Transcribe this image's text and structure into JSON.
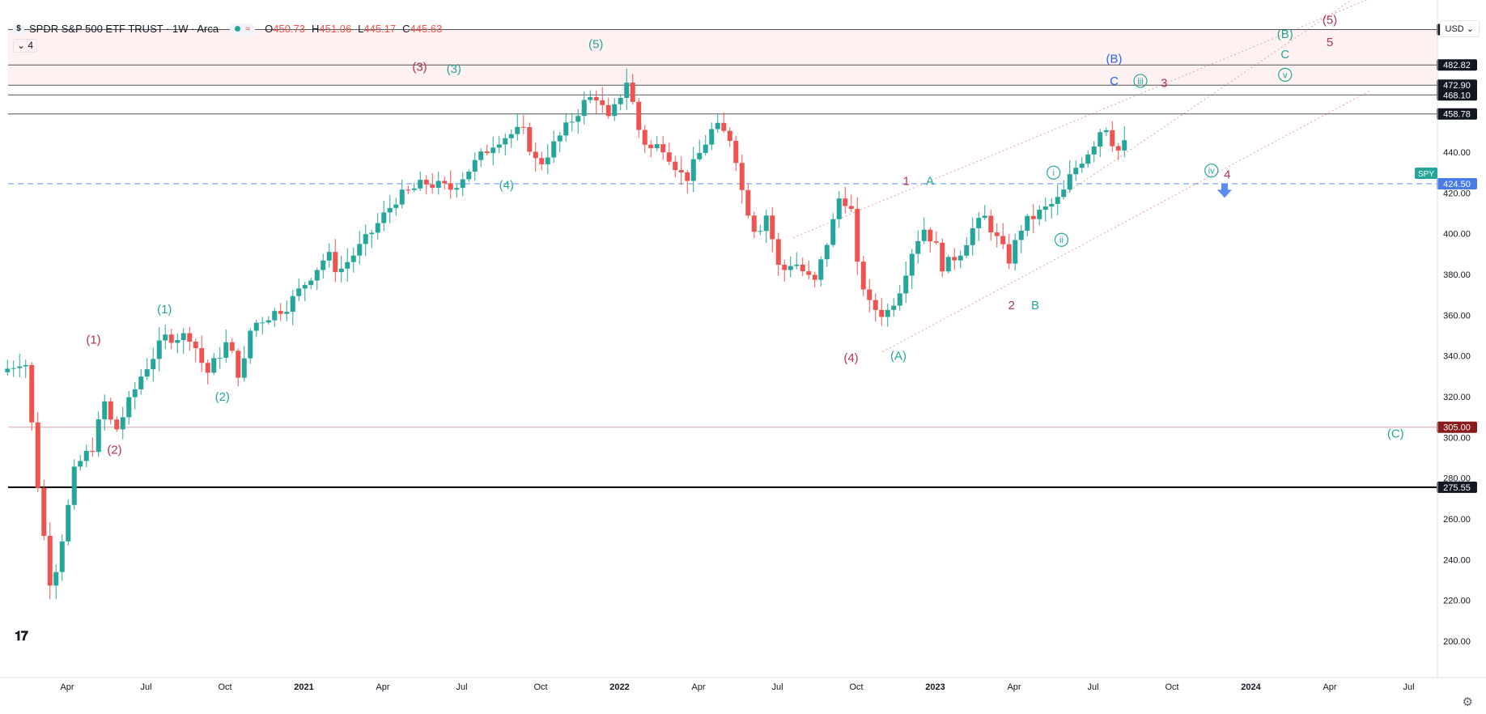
{
  "legend": {
    "symbol_badge": "$",
    "title": "SPDR S&P 500 ETF TRUST · 1W · Arca",
    "indicator_glyph": "≈",
    "ohlc": [
      {
        "k": "O",
        "v": "450.73"
      },
      {
        "k": "H",
        "v": "451.06"
      },
      {
        "k": "L",
        "v": "445.17"
      },
      {
        "k": "C",
        "v": "445.63"
      }
    ],
    "collapse_label": "⌄ 4"
  },
  "currency": "USD ⌄",
  "ticker_tag": "SPY",
  "colors": {
    "up": "#26a69a",
    "down": "#ef5350",
    "red_label": "#b2334a",
    "teal_label": "#26a69a",
    "blue_label": "#2962ff"
  },
  "chart_data": {
    "type": "candlestick",
    "interval": "1W",
    "ylim": [
      190,
      512
    ],
    "y_ticks": [
      "200.00",
      "220.00",
      "240.00",
      "260.00",
      "280.00",
      "300.00",
      "320.00",
      "340.00",
      "360.00",
      "380.00",
      "400.00",
      "420.00",
      "440.00"
    ],
    "x_ticks": [
      {
        "label": "Apr",
        "m": 3
      },
      {
        "label": "Jul",
        "m": 6
      },
      {
        "label": "Oct",
        "m": 9
      },
      {
        "label": "2021",
        "m": 12
      },
      {
        "label": "Apr",
        "m": 15
      },
      {
        "label": "Jul",
        "m": 18
      },
      {
        "label": "Oct",
        "m": 21
      },
      {
        "label": "2022",
        "m": 24
      },
      {
        "label": "Apr",
        "m": 27
      },
      {
        "label": "Jul",
        "m": 30
      },
      {
        "label": "Oct",
        "m": 33
      },
      {
        "label": "2023",
        "m": 36
      },
      {
        "label": "Apr",
        "m": 39
      },
      {
        "label": "Jul",
        "m": 42
      },
      {
        "label": "Oct",
        "m": 45
      },
      {
        "label": "2024",
        "m": 48
      },
      {
        "label": "Apr",
        "m": 51
      },
      {
        "label": "Jul",
        "m": 54
      }
    ],
    "price_pivots": [
      [
        0.5,
        332
      ],
      [
        1.4,
        339
      ],
      [
        2.0,
        262
      ],
      [
        2.4,
        225
      ],
      [
        3.0,
        263
      ],
      [
        3.3,
        285
      ],
      [
        4.0,
        296
      ],
      [
        4.4,
        318
      ],
      [
        4.8,
        302
      ],
      [
        5.1,
        310
      ],
      [
        5.8,
        330
      ],
      [
        6.7,
        349
      ],
      [
        7.7,
        350
      ],
      [
        8.3,
        331
      ],
      [
        9.1,
        347
      ],
      [
        9.6,
        328
      ],
      [
        10.0,
        355
      ],
      [
        11.4,
        365
      ],
      [
        12.9,
        390
      ],
      [
        13.3,
        381
      ],
      [
        14.3,
        396
      ],
      [
        15.5,
        417
      ],
      [
        16.6,
        425
      ],
      [
        17.6,
        422
      ],
      [
        19.3,
        446
      ],
      [
        20.3,
        451
      ],
      [
        20.9,
        433
      ],
      [
        21.3,
        440
      ],
      [
        22.7,
        465
      ],
      [
        23.1,
        468
      ],
      [
        23.6,
        455
      ],
      [
        24.1,
        470
      ],
      [
        24.3,
        476
      ],
      [
        24.7,
        452
      ],
      [
        25.1,
        441
      ],
      [
        25.6,
        444
      ],
      [
        26.5,
        426
      ],
      [
        27.6,
        453
      ],
      [
        28.3,
        446
      ],
      [
        28.7,
        418
      ],
      [
        29.2,
        400
      ],
      [
        29.6,
        410
      ],
      [
        30.1,
        380
      ],
      [
        30.6,
        387
      ],
      [
        31.4,
        375
      ],
      [
        32.1,
        405
      ],
      [
        32.4,
        420
      ],
      [
        32.8,
        412
      ],
      [
        33.0,
        385
      ],
      [
        33.5,
        365
      ],
      [
        34.1,
        360
      ],
      [
        34.6,
        371
      ],
      [
        35.2,
        395
      ],
      [
        35.6,
        403
      ],
      [
        36.1,
        392
      ],
      [
        36.3,
        383
      ],
      [
        37.0,
        392
      ],
      [
        37.4,
        402
      ],
      [
        37.9,
        408
      ],
      [
        38.4,
        396
      ],
      [
        38.8,
        387
      ],
      [
        39.3,
        404
      ],
      [
        39.7,
        408
      ],
      [
        40.3,
        413
      ],
      [
        40.8,
        418
      ],
      [
        41.2,
        430
      ],
      [
        41.9,
        442
      ],
      [
        42.2,
        448
      ],
      [
        42.4,
        456
      ],
      [
        42.7,
        446
      ],
      [
        43.0,
        440
      ],
      [
        43.4,
        448
      ]
    ],
    "horizontal_levels": [
      {
        "value": 500.2,
        "label": "500.20",
        "style": "dark"
      },
      {
        "value": 482.82,
        "label": "482.82",
        "style": "dark"
      },
      {
        "value": 472.9,
        "label": "472.90",
        "style": "dark"
      },
      {
        "value": 468.1,
        "label": "468.10",
        "style": "dark"
      },
      {
        "value": 458.78,
        "label": "458.78",
        "style": "dark"
      },
      {
        "value": 424.5,
        "label": "424.50",
        "style": "blue-dashed"
      },
      {
        "value": 305.0,
        "label": "305.00",
        "style": "red"
      },
      {
        "value": 275.55,
        "label": "275.55",
        "style": "black"
      }
    ],
    "shaded_zone": [
      472.9,
      500.2
    ],
    "channel_lines": [
      {
        "from": [
          30.6,
          398
        ],
        "to": [
          53.0,
          518
        ]
      },
      {
        "from": [
          34.0,
          342
        ],
        "to": [
          52.5,
          470
        ]
      },
      {
        "from": [
          41.0,
          420
        ],
        "to": [
          53.0,
          525
        ]
      }
    ],
    "wave_labels": [
      {
        "text": "(1)",
        "m": 4.0,
        "v": 346,
        "color": "red"
      },
      {
        "text": "(2)",
        "m": 4.8,
        "v": 292,
        "color": "red"
      },
      {
        "text": "(1)",
        "m": 6.7,
        "v": 361,
        "color": "teal"
      },
      {
        "text": "(2)",
        "m": 8.9,
        "v": 318,
        "color": "teal"
      },
      {
        "text": "(3)",
        "m": 16.4,
        "v": 480,
        "color": "red"
      },
      {
        "text": "(3)",
        "m": 17.7,
        "v": 479,
        "color": "teal"
      },
      {
        "text": "(4)",
        "m": 19.7,
        "v": 422,
        "color": "teal"
      },
      {
        "text": "(5)",
        "m": 23.1,
        "v": 491,
        "color": "teal"
      },
      {
        "text": "(4)",
        "m": 32.8,
        "v": 337,
        "color": "red"
      },
      {
        "text": "(A)",
        "m": 34.6,
        "v": 338,
        "color": "teal"
      },
      {
        "text": "1",
        "m": 34.9,
        "v": 424,
        "color": "red"
      },
      {
        "text": "A",
        "m": 35.8,
        "v": 424,
        "color": "teal"
      },
      {
        "text": "2",
        "m": 38.9,
        "v": 363,
        "color": "red"
      },
      {
        "text": "B",
        "m": 39.8,
        "v": 363,
        "color": "teal"
      },
      {
        "text": "i",
        "m": 40.5,
        "v": 428,
        "color": "teal",
        "circle": true
      },
      {
        "text": "ii",
        "m": 40.8,
        "v": 395,
        "color": "teal",
        "circle": true
      },
      {
        "text": "(B)",
        "m": 42.8,
        "v": 484,
        "color": "blue"
      },
      {
        "text": "C",
        "m": 42.8,
        "v": 473,
        "color": "blue"
      },
      {
        "text": "iii",
        "m": 43.8,
        "v": 473,
        "color": "teal",
        "circle": true
      },
      {
        "text": "3",
        "m": 44.7,
        "v": 472,
        "color": "red"
      },
      {
        "text": "iv",
        "m": 46.5,
        "v": 429,
        "color": "teal",
        "circle": true
      },
      {
        "text": "4",
        "m": 47.1,
        "v": 427,
        "color": "red"
      },
      {
        "text": "(B)",
        "m": 49.3,
        "v": 496,
        "color": "teal"
      },
      {
        "text": "C",
        "m": 49.3,
        "v": 486,
        "color": "teal"
      },
      {
        "text": "v",
        "m": 49.3,
        "v": 476,
        "color": "teal",
        "circle": true
      },
      {
        "text": "(5)",
        "m": 51.0,
        "v": 503,
        "color": "red"
      },
      {
        "text": "5",
        "m": 51.0,
        "v": 492,
        "color": "red"
      },
      {
        "text": "(C)",
        "m": 53.5,
        "v": 300,
        "color": "teal"
      }
    ],
    "arrow_down": {
      "m": 47.0,
      "v": 420
    }
  }
}
